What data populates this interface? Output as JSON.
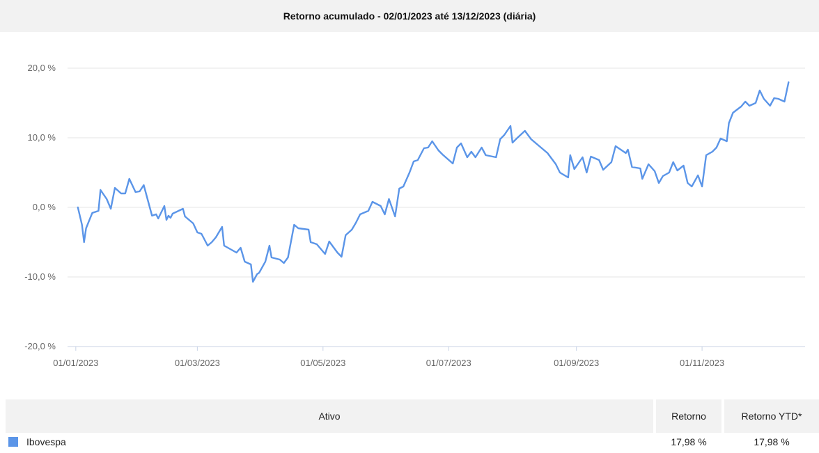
{
  "title": "Retorno acumulado - 02/01/2023 até 13/12/2023 (diária)",
  "chart_data": {
    "type": "line",
    "title": "Retorno acumulado - 02/01/2023 até 13/12/2023 (diária)",
    "xlabel": "",
    "ylabel": "",
    "x_ticks": [
      "01/01/2023",
      "01/03/2023",
      "01/05/2023",
      "01/07/2023",
      "01/09/2023",
      "01/11/2023"
    ],
    "y_ticks": [
      "20,0 %",
      "10,0 %",
      "0,0 %",
      "-10,0 %",
      "-20,0 %"
    ],
    "xlim": [
      "2022-12-28",
      "2023-12-21"
    ],
    "ylim": [
      -20,
      20
    ],
    "grid": true,
    "series": [
      {
        "name": "Ibovespa",
        "color": "#5b95e8",
        "points": [
          [
            "2023-01-02",
            0.0
          ],
          [
            "2023-01-04",
            -2.5
          ],
          [
            "2023-01-05",
            -5.0
          ],
          [
            "2023-01-06",
            -3.0
          ],
          [
            "2023-01-09",
            -0.8
          ],
          [
            "2023-01-12",
            -0.5
          ],
          [
            "2023-01-13",
            2.5
          ],
          [
            "2023-01-16",
            1.2
          ],
          [
            "2023-01-18",
            -0.2
          ],
          [
            "2023-01-20",
            2.8
          ],
          [
            "2023-01-23",
            2.0
          ],
          [
            "2023-01-25",
            2.0
          ],
          [
            "2023-01-27",
            4.1
          ],
          [
            "2023-01-30",
            2.2
          ],
          [
            "2023-02-01",
            2.3
          ],
          [
            "2023-02-03",
            3.2
          ],
          [
            "2023-02-07",
            -1.2
          ],
          [
            "2023-02-09",
            -1.0
          ],
          [
            "2023-02-10",
            -1.6
          ],
          [
            "2023-02-13",
            0.2
          ],
          [
            "2023-02-14",
            -1.8
          ],
          [
            "2023-02-15",
            -1.2
          ],
          [
            "2023-02-16",
            -1.5
          ],
          [
            "2023-02-17",
            -0.9
          ],
          [
            "2023-02-22",
            -0.2
          ],
          [
            "2023-02-23",
            -1.3
          ],
          [
            "2023-02-27",
            -2.3
          ],
          [
            "2023-03-01",
            -3.6
          ],
          [
            "2023-03-03",
            -3.8
          ],
          [
            "2023-03-06",
            -5.5
          ],
          [
            "2023-03-08",
            -5.0
          ],
          [
            "2023-03-10",
            -4.3
          ],
          [
            "2023-03-13",
            -2.8
          ],
          [
            "2023-03-14",
            -5.5
          ],
          [
            "2023-03-17",
            -6.0
          ],
          [
            "2023-03-20",
            -6.5
          ],
          [
            "2023-03-22",
            -5.8
          ],
          [
            "2023-03-24",
            -7.8
          ],
          [
            "2023-03-27",
            -8.2
          ],
          [
            "2023-03-28",
            -10.7
          ],
          [
            "2023-03-30",
            -9.6
          ],
          [
            "2023-03-31",
            -9.4
          ],
          [
            "2023-04-03",
            -7.8
          ],
          [
            "2023-04-05",
            -5.5
          ],
          [
            "2023-04-06",
            -7.2
          ],
          [
            "2023-04-10",
            -7.5
          ],
          [
            "2023-04-12",
            -8.0
          ],
          [
            "2023-04-14",
            -7.2
          ],
          [
            "2023-04-17",
            -2.5
          ],
          [
            "2023-04-19",
            -3.0
          ],
          [
            "2023-04-24",
            -3.2
          ],
          [
            "2023-04-25",
            -5.0
          ],
          [
            "2023-04-28",
            -5.3
          ],
          [
            "2023-05-02",
            -6.7
          ],
          [
            "2023-05-04",
            -4.9
          ],
          [
            "2023-05-08",
            -6.5
          ],
          [
            "2023-05-10",
            -7.1
          ],
          [
            "2023-05-12",
            -4.0
          ],
          [
            "2023-05-15",
            -3.2
          ],
          [
            "2023-05-17",
            -2.2
          ],
          [
            "2023-05-19",
            -1.0
          ],
          [
            "2023-05-23",
            -0.5
          ],
          [
            "2023-05-25",
            0.8
          ],
          [
            "2023-05-29",
            0.2
          ],
          [
            "2023-05-31",
            -1.0
          ],
          [
            "2023-06-02",
            1.2
          ],
          [
            "2023-06-05",
            -1.3
          ],
          [
            "2023-06-07",
            2.7
          ],
          [
            "2023-06-09",
            3.0
          ],
          [
            "2023-06-12",
            5.0
          ],
          [
            "2023-06-14",
            6.6
          ],
          [
            "2023-06-16",
            6.8
          ],
          [
            "2023-06-19",
            8.5
          ],
          [
            "2023-06-21",
            8.6
          ],
          [
            "2023-06-23",
            9.5
          ],
          [
            "2023-06-26",
            8.2
          ],
          [
            "2023-06-28",
            7.6
          ],
          [
            "2023-07-03",
            6.3
          ],
          [
            "2023-07-05",
            8.6
          ],
          [
            "2023-07-07",
            9.2
          ],
          [
            "2023-07-10",
            7.2
          ],
          [
            "2023-07-12",
            8.0
          ],
          [
            "2023-07-14",
            7.2
          ],
          [
            "2023-07-17",
            8.6
          ],
          [
            "2023-07-19",
            7.5
          ],
          [
            "2023-07-24",
            7.2
          ],
          [
            "2023-07-26",
            9.8
          ],
          [
            "2023-07-28",
            10.4
          ],
          [
            "2023-07-31",
            11.7
          ],
          [
            "2023-08-01",
            9.3
          ],
          [
            "2023-08-03",
            9.9
          ],
          [
            "2023-08-07",
            11.0
          ],
          [
            "2023-08-10",
            9.8
          ],
          [
            "2023-08-14",
            8.8
          ],
          [
            "2023-08-18",
            7.8
          ],
          [
            "2023-08-22",
            6.2
          ],
          [
            "2023-08-24",
            5.0
          ],
          [
            "2023-08-28",
            4.3
          ],
          [
            "2023-08-29",
            7.5
          ],
          [
            "2023-08-31",
            5.5
          ],
          [
            "2023-09-04",
            7.2
          ],
          [
            "2023-09-06",
            5.0
          ],
          [
            "2023-09-08",
            7.3
          ],
          [
            "2023-09-12",
            6.8
          ],
          [
            "2023-09-14",
            5.4
          ],
          [
            "2023-09-18",
            6.5
          ],
          [
            "2023-09-20",
            8.8
          ],
          [
            "2023-09-25",
            7.8
          ],
          [
            "2023-09-26",
            8.3
          ],
          [
            "2023-09-28",
            5.8
          ],
          [
            "2023-10-02",
            5.6
          ],
          [
            "2023-10-03",
            4.1
          ],
          [
            "2023-10-06",
            6.2
          ],
          [
            "2023-10-09",
            5.2
          ],
          [
            "2023-10-11",
            3.5
          ],
          [
            "2023-10-13",
            4.5
          ],
          [
            "2023-10-16",
            5.0
          ],
          [
            "2023-10-18",
            6.5
          ],
          [
            "2023-10-20",
            5.3
          ],
          [
            "2023-10-23",
            6.0
          ],
          [
            "2023-10-25",
            3.5
          ],
          [
            "2023-10-27",
            3.0
          ],
          [
            "2023-10-30",
            4.6
          ],
          [
            "2023-11-01",
            3.0
          ],
          [
            "2023-11-03",
            7.5
          ],
          [
            "2023-11-06",
            8.0
          ],
          [
            "2023-11-08",
            8.6
          ],
          [
            "2023-11-10",
            9.9
          ],
          [
            "2023-11-13",
            9.5
          ],
          [
            "2023-11-14",
            12.1
          ],
          [
            "2023-11-16",
            13.6
          ],
          [
            "2023-11-20",
            14.5
          ],
          [
            "2023-11-22",
            15.2
          ],
          [
            "2023-11-24",
            14.6
          ],
          [
            "2023-11-27",
            15.0
          ],
          [
            "2023-11-29",
            16.8
          ],
          [
            "2023-12-01",
            15.6
          ],
          [
            "2023-12-04",
            14.6
          ],
          [
            "2023-12-06",
            15.7
          ],
          [
            "2023-12-08",
            15.6
          ],
          [
            "2023-12-11",
            15.2
          ],
          [
            "2023-12-13",
            17.98
          ]
        ]
      }
    ]
  },
  "table": {
    "headers": {
      "asset": "Ativo",
      "return": "Retorno",
      "ytd": "Retorno YTD*"
    },
    "rows": [
      {
        "asset": "Ibovespa",
        "return": "17,98 %",
        "ytd": "17,98 %",
        "color": "#5b95e8"
      }
    ]
  }
}
